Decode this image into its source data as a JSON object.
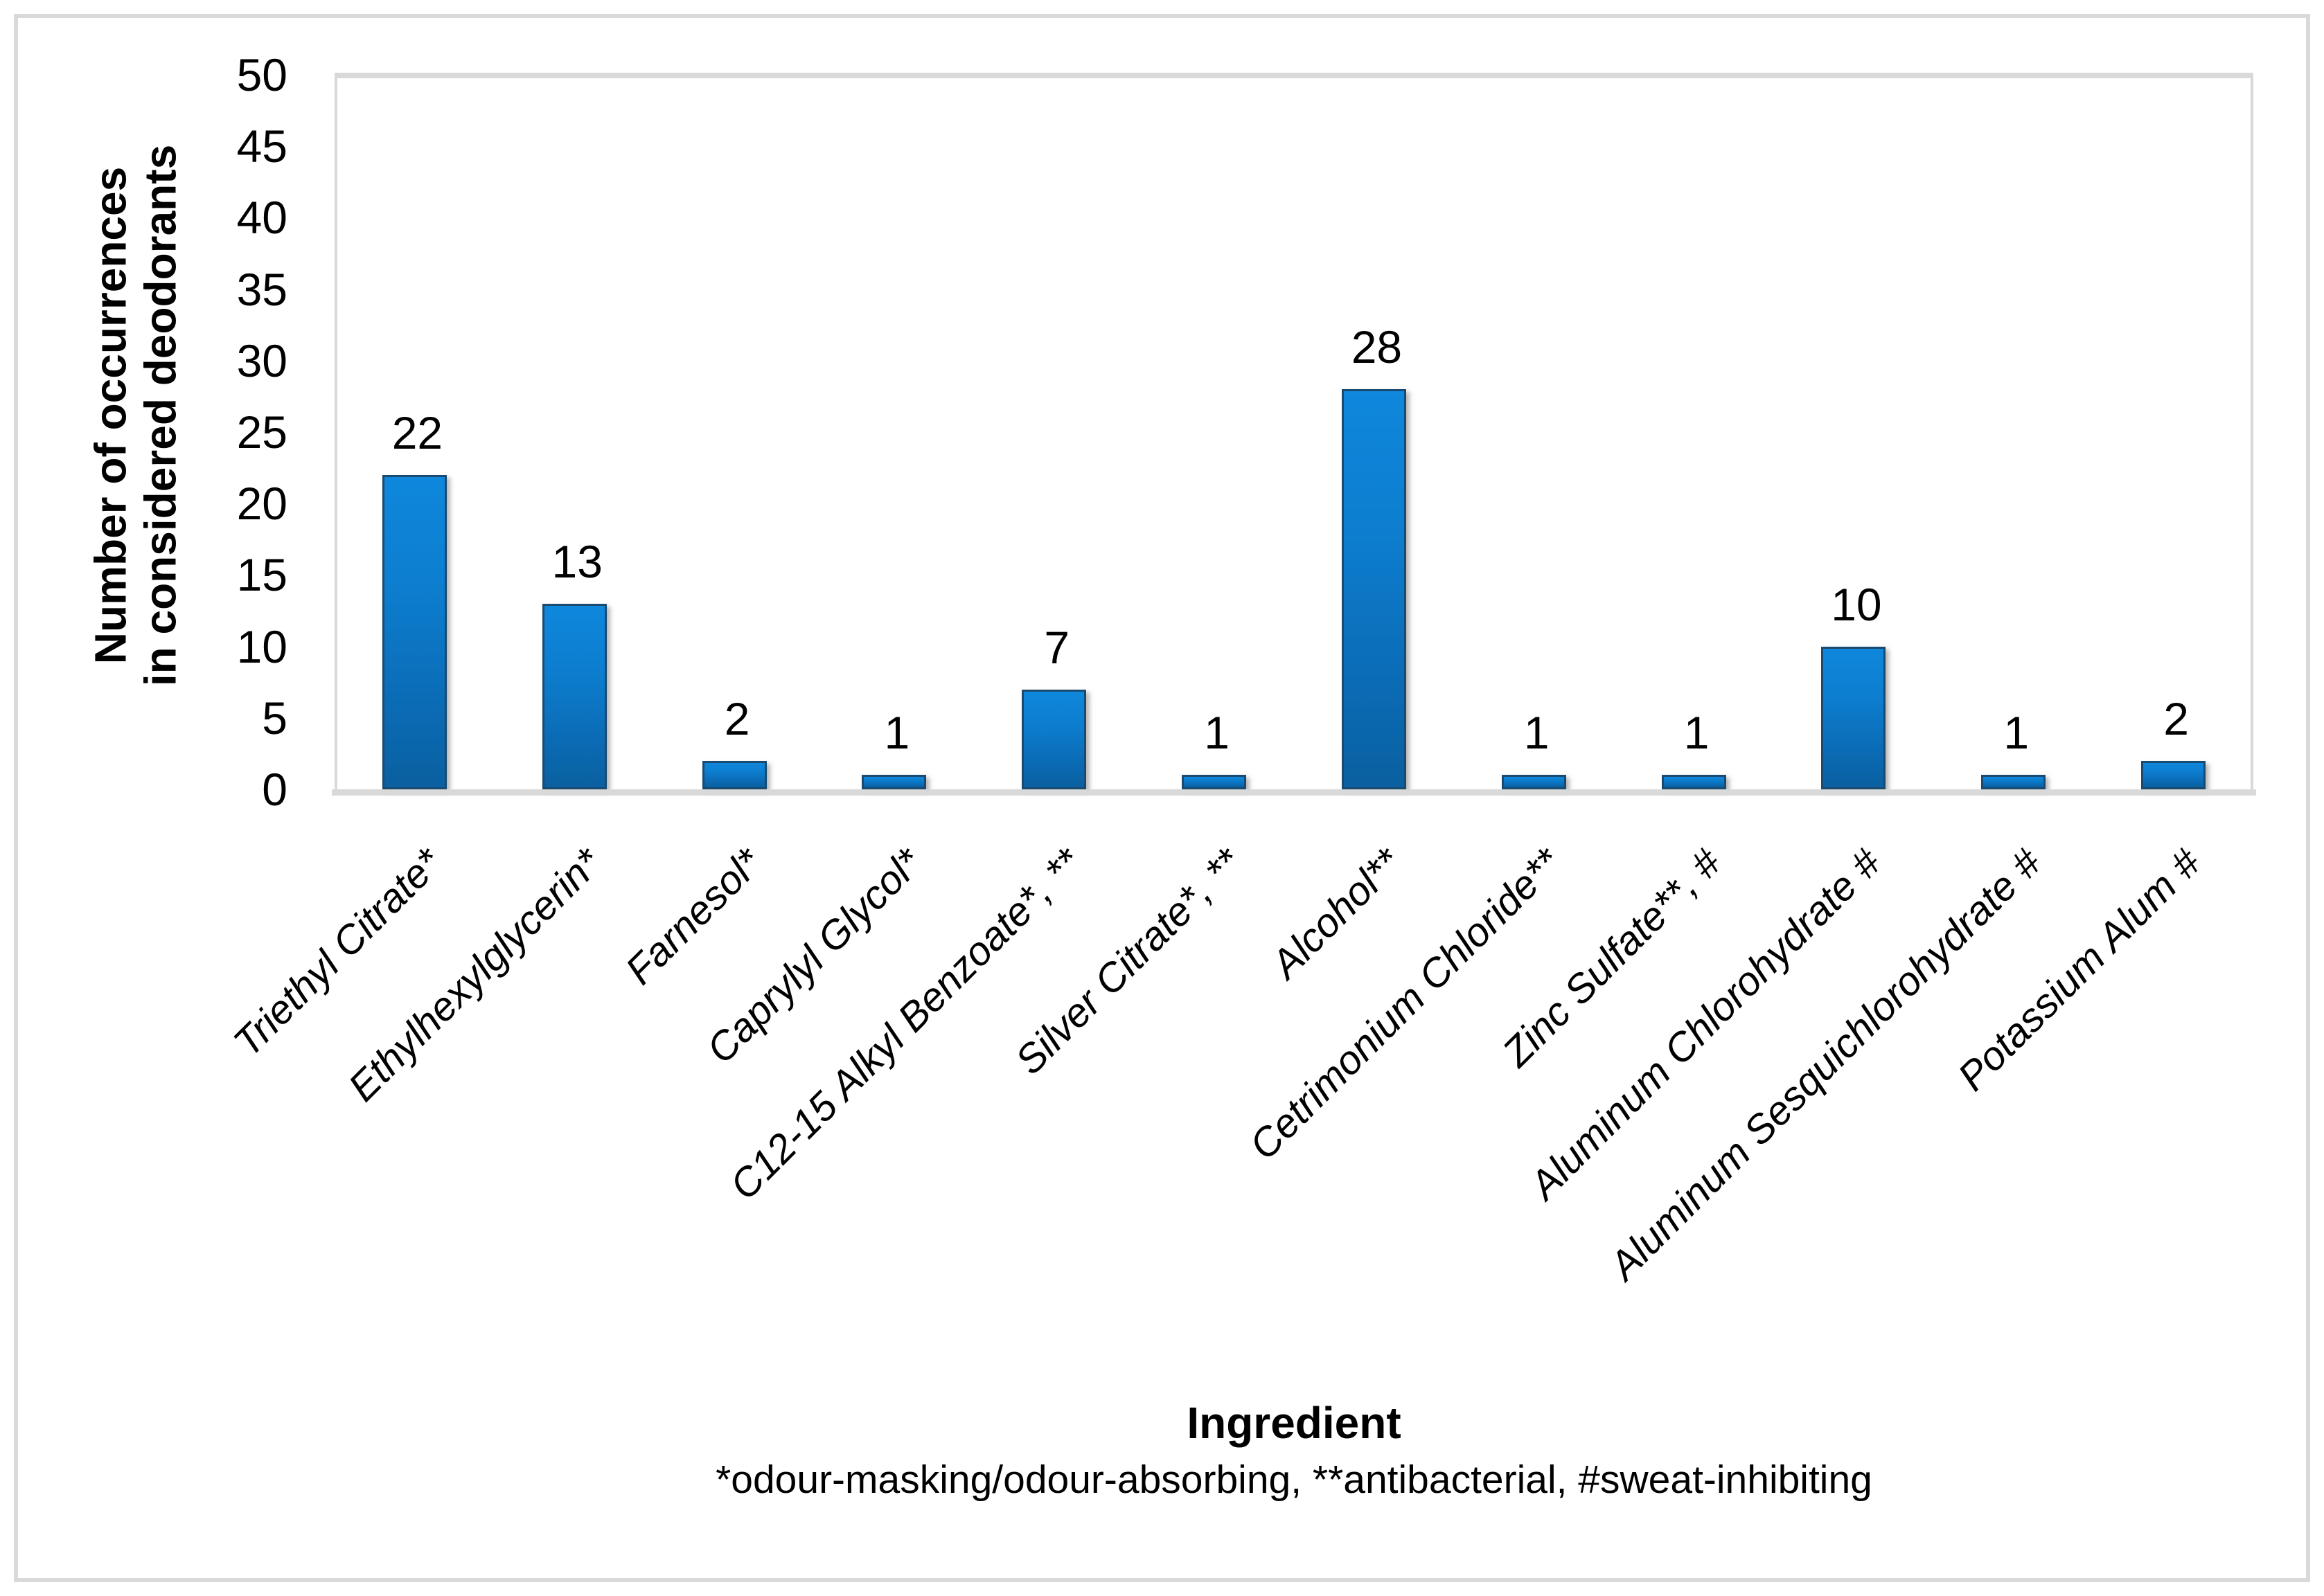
{
  "chart_data": {
    "type": "bar",
    "title": "",
    "xlabel": "Ingredient",
    "ylabel_lines": [
      "Number of occurrences",
      "in considered deodorants"
    ],
    "footnote": "*odour-masking/odour-absorbing, **antibacterial, #sweat-inhibiting",
    "categories": [
      "Triethyl Citrate*",
      "Ethylhexylglycerin*",
      "Farnesol*",
      "Caprylyl Glycol*",
      "C12-15 Alkyl Benzoate*, **",
      "Silver Citrate*, **",
      "Alcohol**",
      "Cetrimonium Chloride**",
      "Zinc Sulfate**, #",
      "Aluminum Chlorohydrate #",
      "Aluminum Sesquichlorohydrate #",
      "Potassium Alum #"
    ],
    "values": [
      22,
      13,
      2,
      1,
      7,
      1,
      28,
      1,
      1,
      10,
      1,
      2
    ],
    "yticks": [
      0,
      5,
      10,
      15,
      20,
      25,
      30,
      35,
      40,
      45,
      50
    ],
    "ylim": [
      0,
      50
    ],
    "grid": false,
    "legend": null,
    "colors": {
      "bar_top": "#0e87dc",
      "bar_bottom": "#0a60a0",
      "bar_border": "#1a4a70",
      "axis": "#d9d9d9",
      "figure_border": "#d9d9d9",
      "text": "#000000",
      "background": "#ffffff"
    }
  }
}
